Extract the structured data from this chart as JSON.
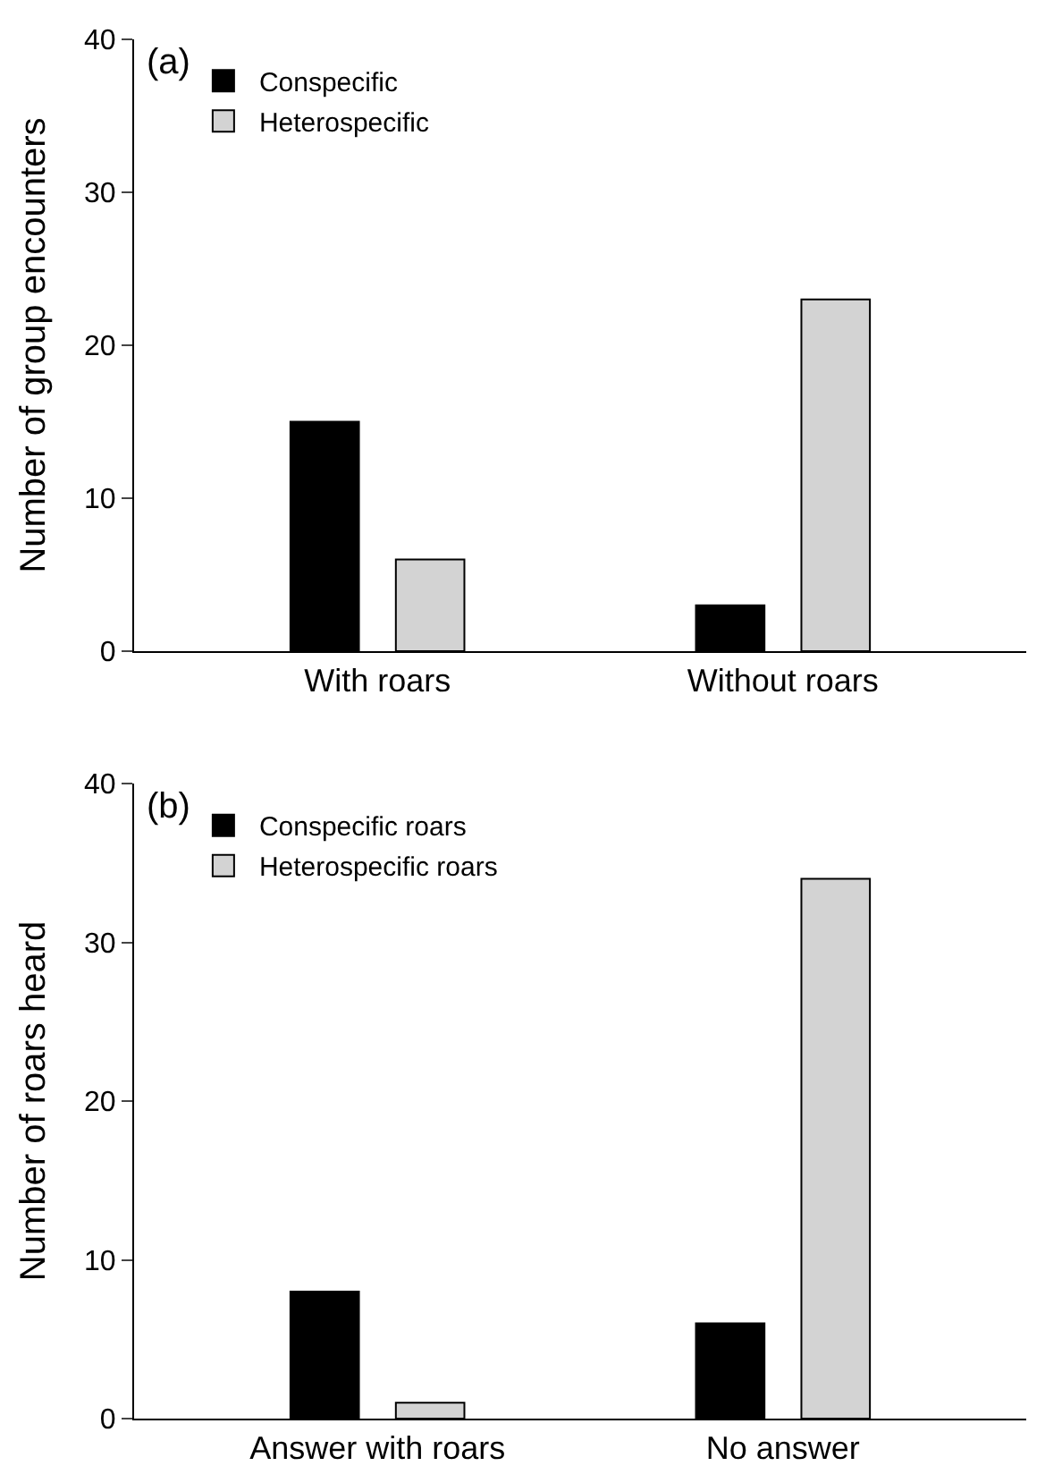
{
  "chart_data": [
    {
      "type": "bar",
      "title": "(a)",
      "ylabel": "Number of group encounters",
      "categories": [
        "With roars",
        "Without roars"
      ],
      "series": [
        {
          "name": "Conspecific",
          "color": "#000000",
          "values": [
            15,
            3
          ]
        },
        {
          "name": "Heterospecific",
          "color": "#d3d3d3",
          "values": [
            6,
            23
          ]
        }
      ],
      "ylim": [
        0,
        40
      ],
      "yticks": [
        0,
        10,
        20,
        30,
        40
      ],
      "grid": false,
      "legend": "top left"
    },
    {
      "type": "bar",
      "title": "(b)",
      "ylabel": "Number of roars heard",
      "categories": [
        "Answer with roars",
        "No answer"
      ],
      "series": [
        {
          "name": "Conspecific roars",
          "color": "#000000",
          "values": [
            8,
            6
          ]
        },
        {
          "name": "Heterospecific roars",
          "color": "#d3d3d3",
          "values": [
            1,
            34
          ]
        }
      ],
      "ylim": [
        0,
        40
      ],
      "yticks": [
        0,
        10,
        20,
        30,
        40
      ],
      "grid": false,
      "legend": "top left"
    }
  ]
}
